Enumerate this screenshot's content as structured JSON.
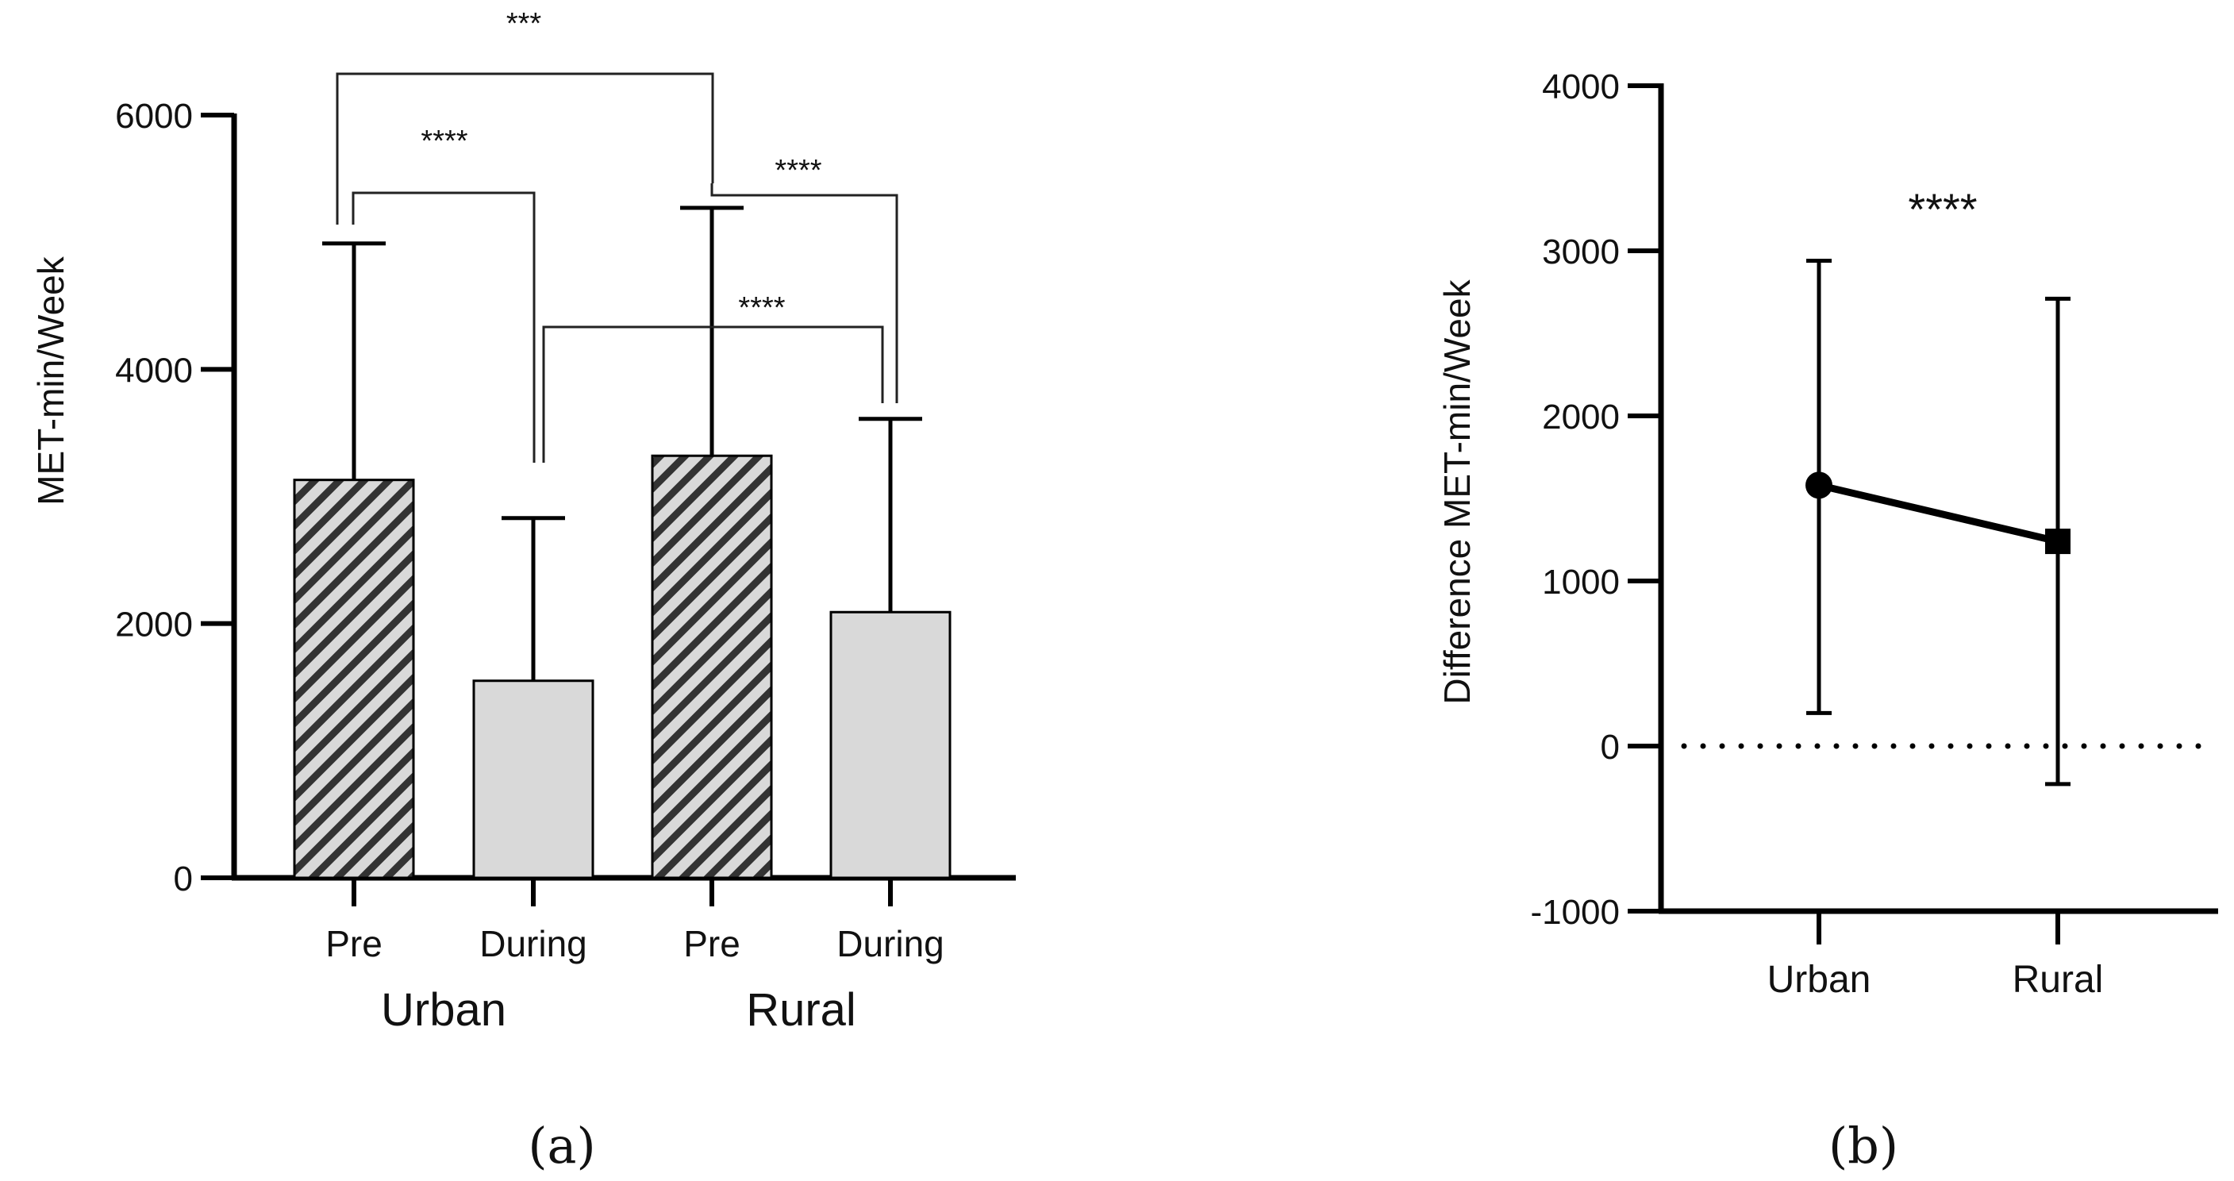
{
  "chart_data": [
    {
      "id": "a",
      "type": "bar",
      "caption": "(a)",
      "ylabel": "MET-min/Week",
      "ylim": [
        0,
        6000
      ],
      "yticks": [
        0,
        2000,
        4000,
        6000
      ],
      "groups": [
        "Urban",
        "Rural"
      ],
      "categories": [
        "Pre",
        "During",
        "Pre",
        "During"
      ],
      "group_of_category": [
        0,
        0,
        1,
        1
      ],
      "values": [
        3130,
        1550,
        3320,
        2090
      ],
      "errors": [
        1860,
        1280,
        1950,
        1520
      ],
      "fills": [
        "hatched",
        "solid",
        "hatched",
        "solid"
      ],
      "significance": [
        {
          "from": 0,
          "to": 2,
          "label": "***"
        },
        {
          "from": 0,
          "to": 1,
          "label": "****"
        },
        {
          "from": 2,
          "to": 3,
          "label": "****"
        },
        {
          "from": 1,
          "to": 3,
          "label": "****"
        }
      ]
    },
    {
      "id": "b",
      "type": "line",
      "caption": "(b)",
      "ylabel": "Difference MET-min/Week",
      "ylim": [
        -1000,
        4000
      ],
      "yticks": [
        -1000,
        0,
        1000,
        2000,
        3000,
        4000
      ],
      "categories": [
        "Urban",
        "Rural"
      ],
      "values": [
        1580,
        1240
      ],
      "error_low": [
        200,
        -230
      ],
      "error_high": [
        2940,
        2710
      ],
      "markers": [
        "circle",
        "square"
      ],
      "reference_line": 0,
      "annotation": "****"
    }
  ],
  "colors": {
    "ink": "#000000",
    "bar_fill": "#d9d9d9",
    "hatch_bg": "#d9d9d9",
    "hatch_line": "#333333",
    "bracket": "#222222"
  }
}
